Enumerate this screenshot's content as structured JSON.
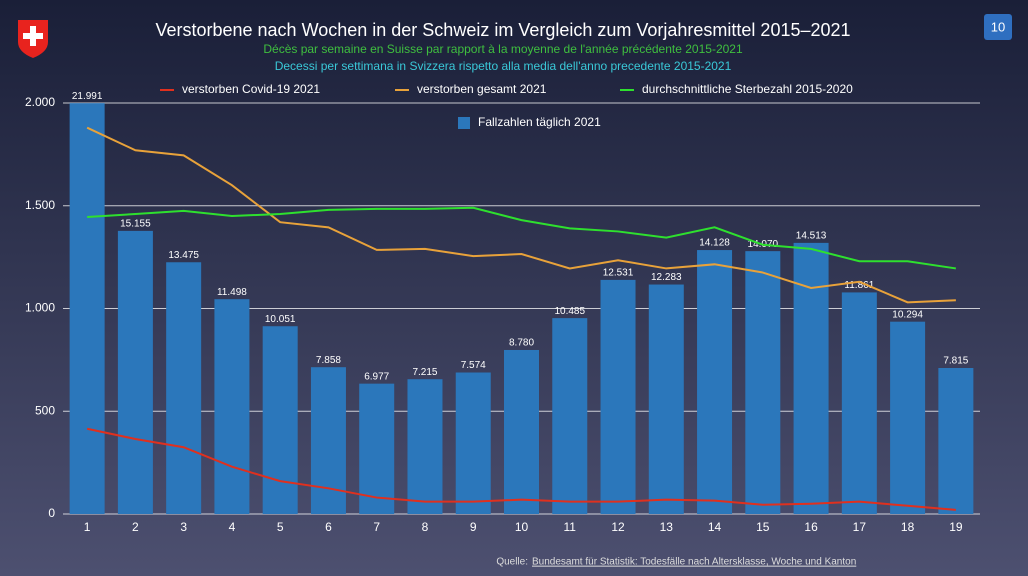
{
  "page_number": "10",
  "source_prefix": "Quelle:",
  "source_link": "Bundesamt für Statistik: Todesfälle nach Altersklasse, Woche und Kanton",
  "chart_data": {
    "type": "bar-line",
    "title": "Verstorbene nach Wochen in der Schweiz im Vergleich zum Vorjahresmittel 2015–2021",
    "subtitle": "Décès par semaine en Suisse par rapport à la moyenne de l'année précédente 2015-2021",
    "subtitle2": "Decessi per settimana in Svizzera rispetto alla media dell'anno precedente 2015-2021",
    "categories": [
      "1",
      "2",
      "3",
      "4",
      "5",
      "6",
      "7",
      "8",
      "9",
      "10",
      "11",
      "12",
      "13",
      "14",
      "15",
      "16",
      "17",
      "18",
      "19"
    ],
    "ylim": [
      0,
      2000
    ],
    "yticks": [
      0,
      500,
      {
        "value": 1000,
        "label": "1.000"
      },
      {
        "value": 1500,
        "label": "1.500"
      },
      {
        "value": 2000,
        "label": "2.000"
      }
    ],
    "y2lim": [
      0,
      22000
    ],
    "grid": true,
    "legend": "top",
    "series": [
      {
        "name": "Fallzahlen täglich 2021",
        "kind": "bar",
        "axis": "y2",
        "color": "#2b77bb",
        "values": [
          21991,
          15155,
          13475,
          11498,
          10051,
          7858,
          6977,
          7215,
          7574,
          8780,
          10485,
          12531,
          12283,
          14128,
          14070,
          14513,
          11861,
          10294,
          7815
        ],
        "value_labels": [
          "21.991",
          "15.155",
          "13.475",
          "11.498",
          "10.051",
          "7.858",
          "6.977",
          "7.215",
          "7.574",
          "8.780",
          "10.485",
          "12.531",
          "12.283",
          "14.128",
          "14.070",
          "14.513",
          "11.861",
          "10.294",
          "7.815"
        ]
      },
      {
        "name": "verstorben Covid-19 2021",
        "kind": "line",
        "color": "#e0301e",
        "values": [
          415,
          365,
          325,
          230,
          160,
          125,
          80,
          60,
          60,
          70,
          60,
          60,
          70,
          65,
          45,
          50,
          60,
          40,
          20
        ]
      },
      {
        "name": "verstorben gesamt 2021",
        "kind": "line",
        "color": "#e8a23a",
        "values": [
          1880,
          1770,
          1745,
          1600,
          1420,
          1395,
          1285,
          1290,
          1255,
          1265,
          1195,
          1235,
          1195,
          1215,
          1175,
          1100,
          1130,
          1030,
          1040
        ]
      },
      {
        "name": "durchschnittliche Sterbezahl 2015-2020",
        "kind": "line",
        "color": "#2ee02e",
        "values": [
          1445,
          1460,
          1475,
          1450,
          1460,
          1480,
          1485,
          1485,
          1490,
          1430,
          1390,
          1375,
          1345,
          1395,
          1310,
          1290,
          1230,
          1230,
          1195
        ]
      }
    ]
  }
}
